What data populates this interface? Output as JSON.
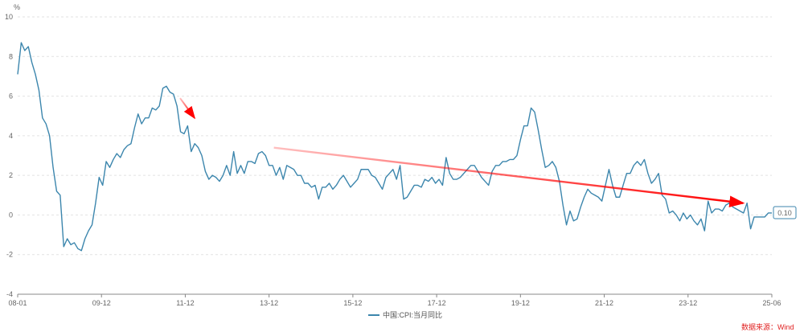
{
  "chart_data": {
    "type": "line",
    "unit_label": "%",
    "ylim": [
      -4,
      10
    ],
    "y_ticks": [
      "10",
      "8",
      "6",
      "4",
      "2",
      "0",
      "-2",
      "-4"
    ],
    "x_ticks": [
      "08-01",
      "09-12",
      "11-12",
      "13-12",
      "15-12",
      "17-12",
      "19-12",
      "21-12",
      "23-12",
      "25-06"
    ],
    "grid": "horizontal dashed",
    "legend_position": "bottom-center",
    "series": [
      {
        "name": "中国:CPI:当月同比",
        "color": "#3c86ad",
        "x_start": "2008-01",
        "x_end": "2025-06",
        "values": [
          7.1,
          8.7,
          8.3,
          8.5,
          7.7,
          7.1,
          6.3,
          4.9,
          4.6,
          4.0,
          2.4,
          1.2,
          1.0,
          -1.6,
          -1.2,
          -1.5,
          -1.4,
          -1.7,
          -1.8,
          -1.2,
          -0.8,
          -0.5,
          0.6,
          1.9,
          1.5,
          2.7,
          2.4,
          2.8,
          3.1,
          2.9,
          3.3,
          3.5,
          3.6,
          4.4,
          5.1,
          4.6,
          4.9,
          4.9,
          5.4,
          5.3,
          5.5,
          6.4,
          6.5,
          6.2,
          6.1,
          5.5,
          4.2,
          4.1,
          4.5,
          3.2,
          3.6,
          3.4,
          3.0,
          2.2,
          1.8,
          2.0,
          1.9,
          1.7,
          2.0,
          2.5,
          2.0,
          3.2,
          2.1,
          2.5,
          2.1,
          2.7,
          2.7,
          2.6,
          3.1,
          3.2,
          3.0,
          2.5,
          2.5,
          2.0,
          2.4,
          1.8,
          2.5,
          2.4,
          2.3,
          2.0,
          2.0,
          1.6,
          1.6,
          1.4,
          1.5,
          0.8,
          1.4,
          1.4,
          1.6,
          1.3,
          1.5,
          1.8,
          2.0,
          1.7,
          1.4,
          1.6,
          1.8,
          2.3,
          2.3,
          2.3,
          2.0,
          1.9,
          1.6,
          1.3,
          1.9,
          2.1,
          2.3,
          1.8,
          2.5,
          0.8,
          0.9,
          1.2,
          1.5,
          1.5,
          1.4,
          1.8,
          1.7,
          1.9,
          1.6,
          1.8,
          1.5,
          2.9,
          2.1,
          1.8,
          1.8,
          1.9,
          2.1,
          2.3,
          2.5,
          2.5,
          2.2,
          1.9,
          1.7,
          1.5,
          2.2,
          2.5,
          2.5,
          2.7,
          2.7,
          2.8,
          2.8,
          3.0,
          3.8,
          4.5,
          4.5,
          5.4,
          5.2,
          4.3,
          3.3,
          2.4,
          2.5,
          2.7,
          2.4,
          1.7,
          0.5,
          -0.5,
          0.2,
          -0.3,
          -0.2,
          0.4,
          0.9,
          1.3,
          1.1,
          1.0,
          0.9,
          0.7,
          1.5,
          2.3,
          1.5,
          0.9,
          0.9,
          1.5,
          2.1,
          2.1,
          2.5,
          2.7,
          2.5,
          2.8,
          2.1,
          1.6,
          1.8,
          2.1,
          1.0,
          0.8,
          0.1,
          0.2,
          0.0,
          -0.3,
          0.1,
          -0.2,
          0.0,
          -0.3,
          -0.5,
          -0.2,
          -0.8,
          0.7,
          0.1,
          0.3,
          0.3,
          0.2,
          0.5,
          0.6,
          0.4,
          0.3,
          0.2,
          0.1,
          0.6,
          -0.7,
          -0.1,
          -0.1,
          -0.1,
          -0.1,
          0.1,
          0.1
        ]
      }
    ],
    "last_value_label": "0.10",
    "annotations": [
      {
        "type": "arrow",
        "color": "#ff0000",
        "from": [
          "2011-10",
          5.9
        ],
        "to": [
          "2012-02",
          4.9
        ]
      },
      {
        "type": "arrow",
        "color": "#ff0000",
        "from": [
          "2013-12",
          3.4
        ],
        "to": [
          "2024-10",
          0.6
        ]
      }
    ]
  },
  "source_text": "数据来源：Wind"
}
